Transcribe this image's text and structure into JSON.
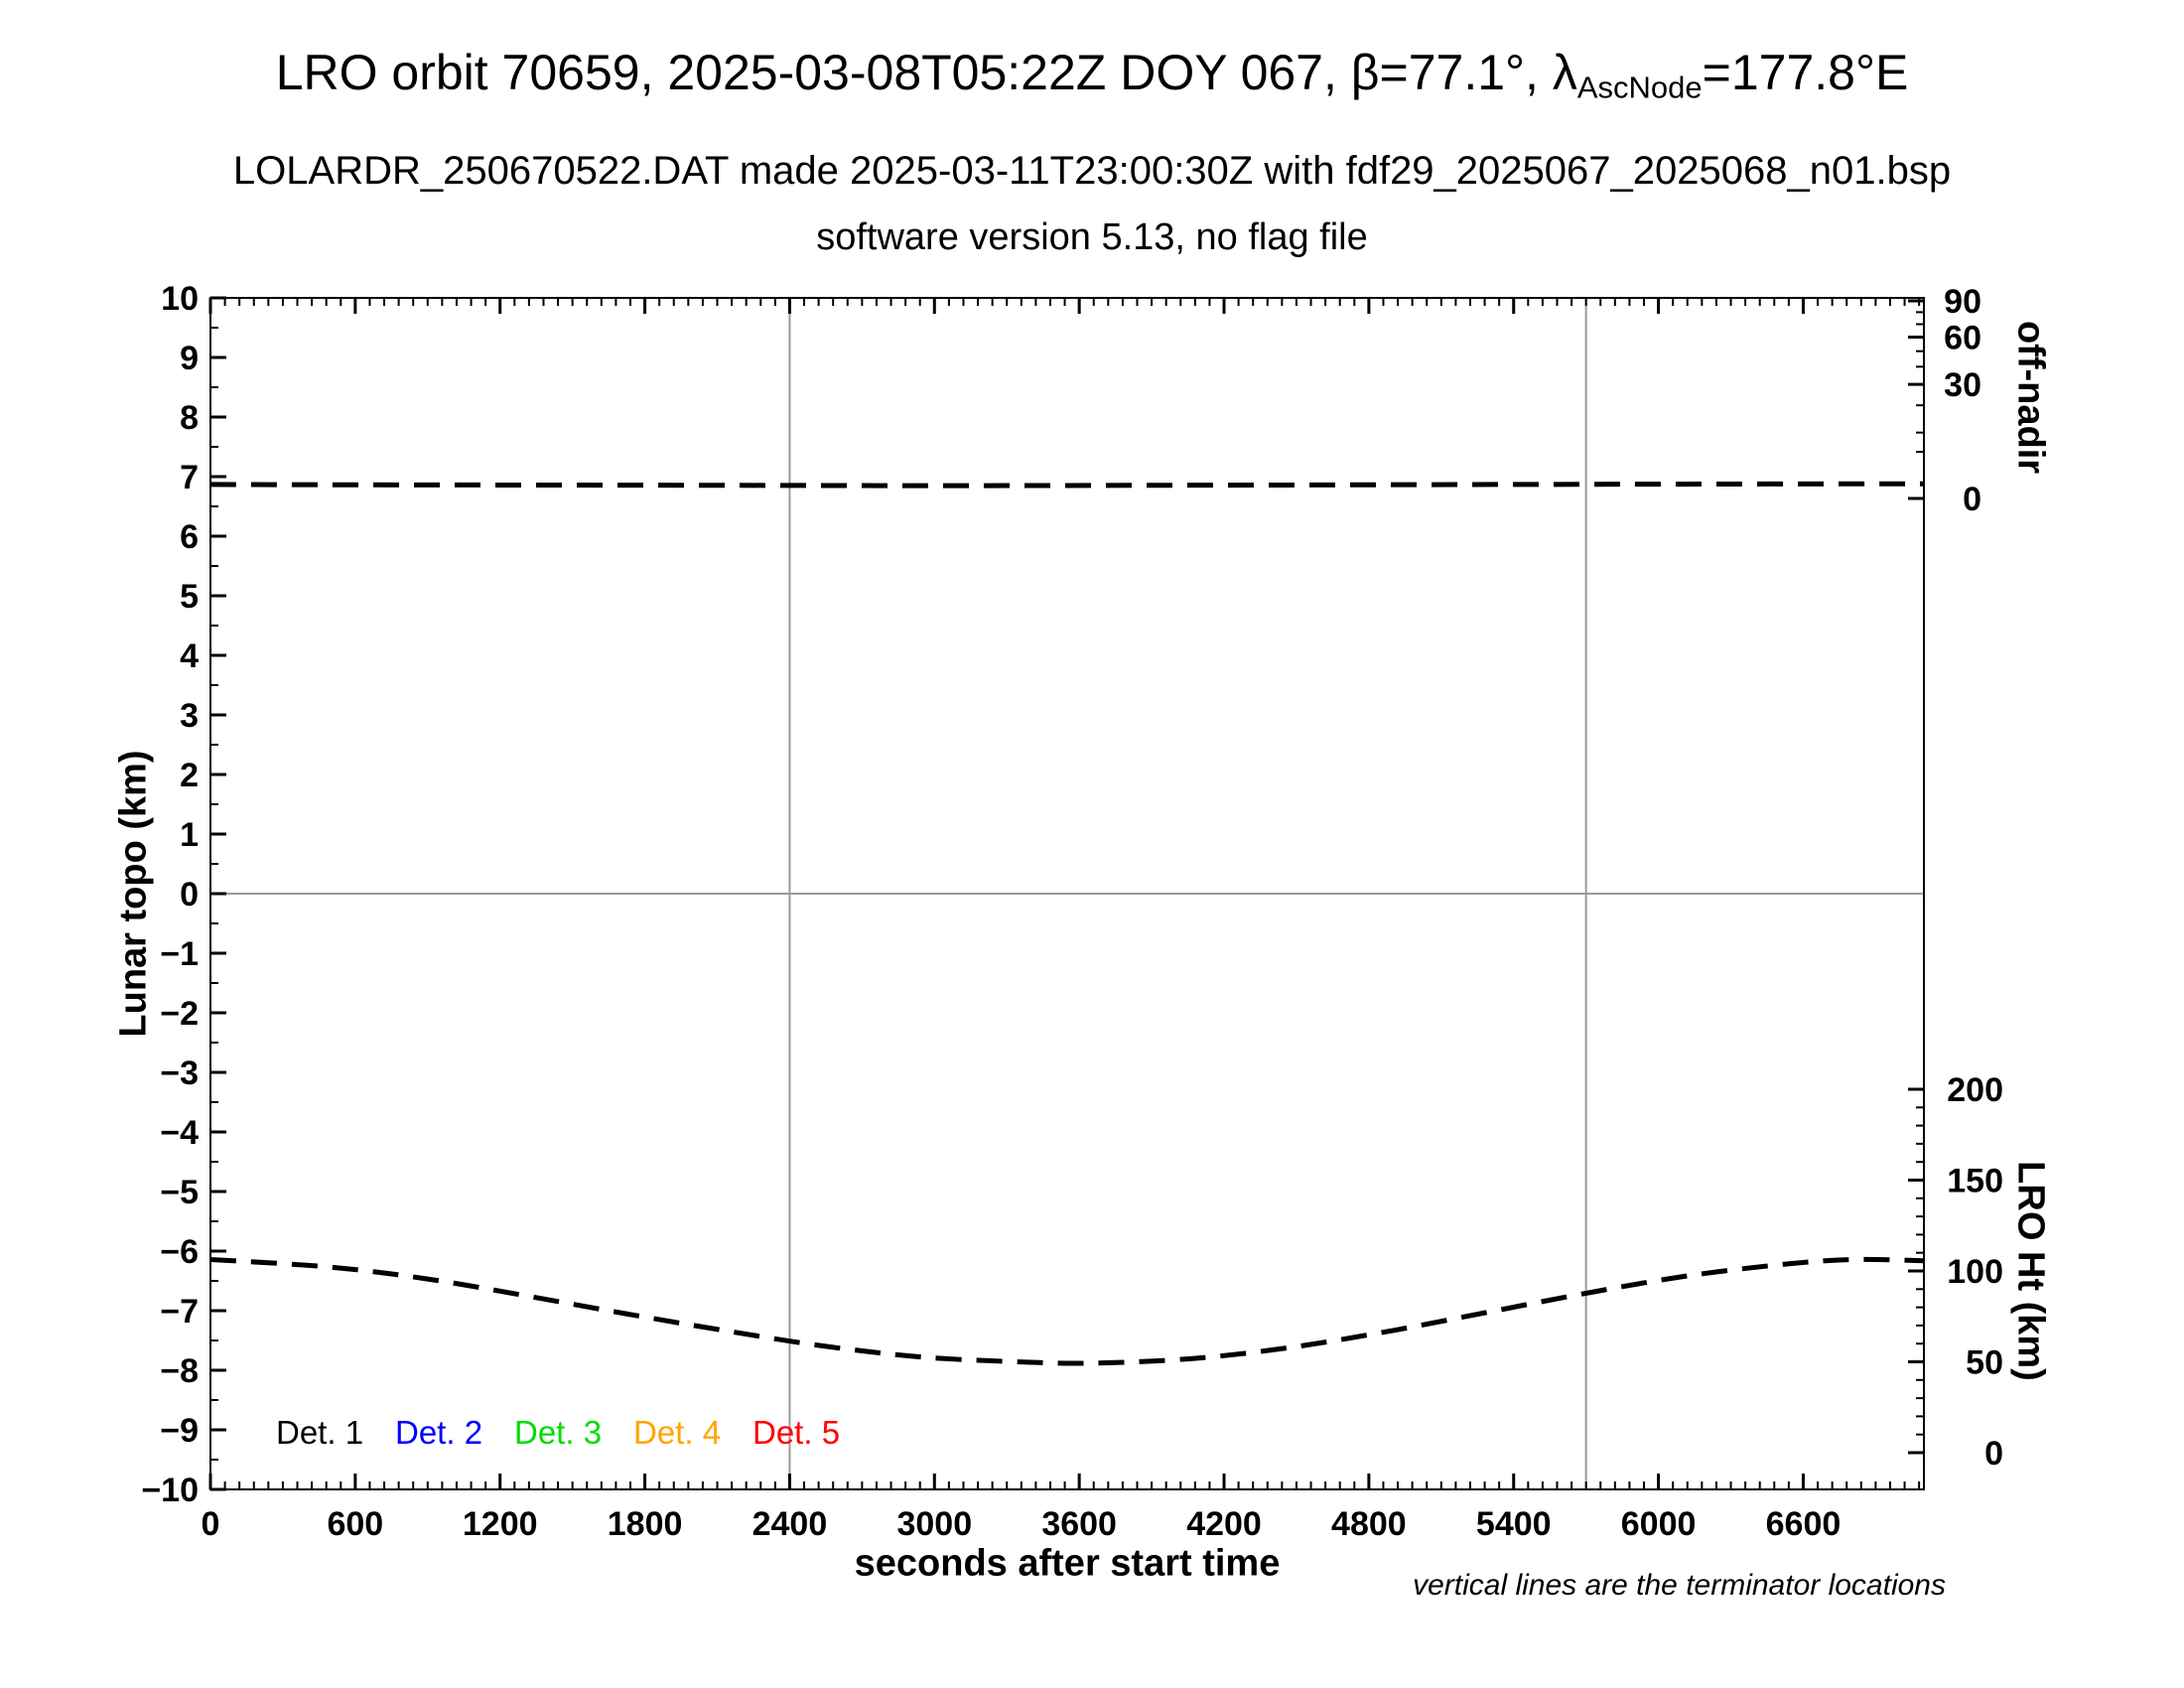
{
  "header": {
    "title_parts": {
      "before_sub": "LRO orbit 70659, 2025-03-08T05:22Z DOY 067, β=77.1°, λ",
      "sub": "AscNode",
      "after_sub": "=177.8°E"
    },
    "subtitle1": "LOLARDR_250670522.DAT made 2025-03-11T23:00:30Z with fdf29_2025067_2025068_n01.bsp",
    "subtitle2": "software version 5.13, no flag file"
  },
  "chart_data": {
    "type": "line",
    "title": "LRO orbit 70659, 2025-03-08T05:22Z DOY 067, β=77.1°, λAscNode=177.8°E",
    "xlabel": "seconds after start time",
    "x_axis": {
      "min": 0,
      "max": 7100,
      "major_tick_step": 600,
      "minor_tick_step": 60,
      "tick_labels": [
        0,
        600,
        1200,
        1800,
        2400,
        3000,
        3600,
        4200,
        4800,
        5400,
        6000,
        6600
      ]
    },
    "y_left": {
      "label": "Lunar topo (km)",
      "min": -10,
      "max": 10,
      "major_tick_step": 1,
      "minor_tick_step": 0.5
    },
    "y_right_offnadir": {
      "label": "off-nadir",
      "scale": "sqrt",
      "min": 0,
      "max": 90,
      "major_ticks": [
        90,
        60,
        30,
        0
      ],
      "minor_ticks": [
        80,
        70,
        50,
        40,
        20,
        10,
        5
      ]
    },
    "y_right_height": {
      "label": "LRO Ht (km)",
      "min": 0,
      "max": 200,
      "major_ticks": [
        200,
        150,
        100,
        50,
        0
      ],
      "minor_tick_step": 10
    },
    "series": [
      {
        "name": "off-nadir angle (deg)",
        "axis": "offnadir",
        "color": "#000000",
        "style": "dashed",
        "x": [
          0,
          1000,
          2000,
          3000,
          4000,
          5000,
          6000,
          7100
        ],
        "y": [
          0.45,
          0.42,
          0.4,
          0.38,
          0.4,
          0.44,
          0.47,
          0.5
        ]
      },
      {
        "name": "LRO height (km)",
        "axis": "height",
        "color": "#000000",
        "style": "dashed",
        "x": [
          0,
          490,
          900,
          1310,
          1720,
          2130,
          2550,
          2960,
          3370,
          3660,
          4070,
          4480,
          4890,
          5300,
          5710,
          6120,
          6530,
          6810,
          7100
        ],
        "y": [
          106.3,
          102.2,
          95.6,
          86.3,
          76.5,
          67.2,
          58.5,
          52.5,
          49.9,
          49.3,
          51.8,
          58.0,
          67.0,
          77.5,
          88.0,
          97.3,
          103.8,
          106.3,
          105.6
        ]
      }
    ],
    "terminators_x": [
      2400,
      5700
    ],
    "zero_line_y": 0,
    "legend": [
      {
        "label": "Det. 1",
        "color": "#000000"
      },
      {
        "label": "Det. 2",
        "color": "#0000ff"
      },
      {
        "label": "Det. 3",
        "color": "#00dd00"
      },
      {
        "label": "Det. 4",
        "color": "#ffa500"
      },
      {
        "label": "Det. 5",
        "color": "#ff0000"
      }
    ],
    "annotation": "vertical lines are the terminator locations",
    "colors": {
      "axis": "#000000",
      "guide_line": "#9a9a9a"
    }
  }
}
